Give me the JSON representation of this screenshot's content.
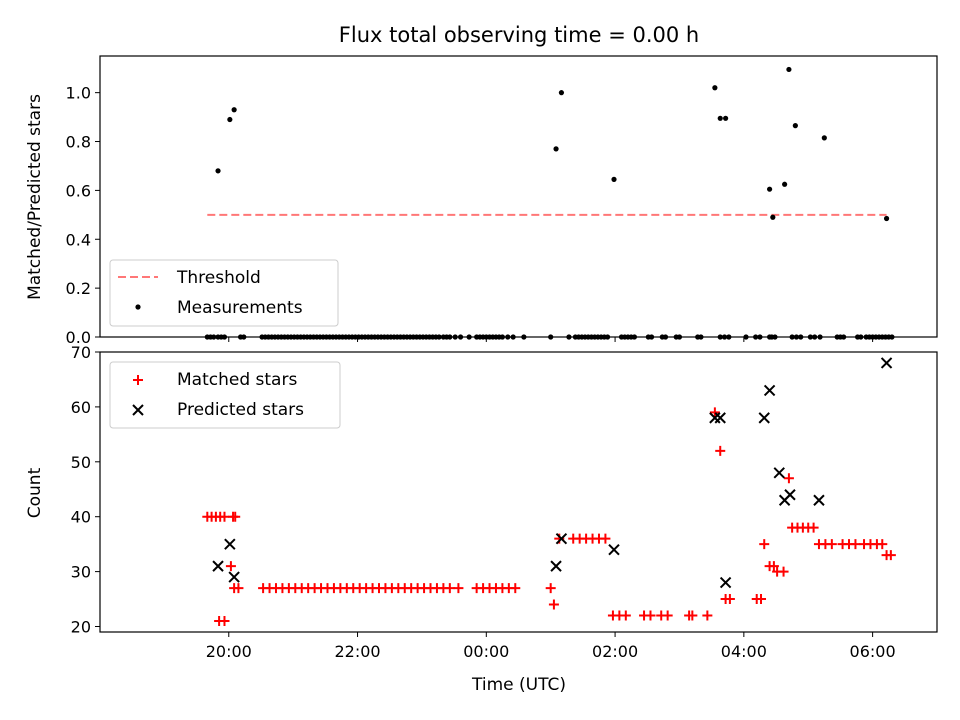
{
  "title": "Flux total observing time = 0.00 h",
  "chart_data": [
    {
      "type": "scatter",
      "ylabel": "Matched/Predicted stars",
      "xlabel": "",
      "ylim": [
        0,
        1.15
      ],
      "yticks": [
        "0.0",
        "0.2",
        "0.4",
        "0.6",
        "0.8",
        "1.0"
      ],
      "xticks": [
        "20:00",
        "22:00",
        "00:00",
        "02:00",
        "04:00",
        "06:00"
      ],
      "legend": "lower-left",
      "grid": false,
      "threshold": {
        "name": "Threshold",
        "value": 0.5,
        "x_start": "19:40",
        "x_end": "06:13",
        "color": "#ff7777"
      },
      "measurements": {
        "name": "Measurements",
        "color": "#000000",
        "nonzero": [
          {
            "x": "19:50",
            "y": 0.68
          },
          {
            "x": "20:01",
            "y": 0.89
          },
          {
            "x": "20:05",
            "y": 0.93
          },
          {
            "x": "01:05",
            "y": 0.77
          },
          {
            "x": "01:10",
            "y": 1.0
          },
          {
            "x": "01:59",
            "y": 0.645
          },
          {
            "x": "03:33",
            "y": 1.02
          },
          {
            "x": "03:38",
            "y": 0.895
          },
          {
            "x": "03:43",
            "y": 0.895
          },
          {
            "x": "04:24",
            "y": 0.605
          },
          {
            "x": "04:27",
            "y": 0.49
          },
          {
            "x": "04:38",
            "y": 0.625
          },
          {
            "x": "04:42",
            "y": 1.095
          },
          {
            "x": "04:48",
            "y": 0.865
          },
          {
            "x": "05:15",
            "y": 0.815
          },
          {
            "x": "06:13",
            "y": 0.485
          }
        ],
        "zero_at": [
          "19:40",
          "19:43",
          "19:46",
          "19:50",
          "19:53",
          "19:56",
          "20:11",
          "20:14",
          "20:31",
          "20:34",
          "20:37",
          "20:40",
          "20:43",
          "20:46",
          "20:49",
          "20:52",
          "20:55",
          "20:58",
          "21:01",
          "21:04",
          "21:07",
          "21:10",
          "21:13",
          "21:16",
          "21:19",
          "21:22",
          "21:25",
          "21:28",
          "21:31",
          "21:34",
          "21:37",
          "21:40",
          "21:43",
          "21:46",
          "21:49",
          "21:52",
          "21:55",
          "21:58",
          "22:01",
          "22:04",
          "22:07",
          "22:10",
          "22:13",
          "22:16",
          "22:19",
          "22:22",
          "22:25",
          "22:28",
          "22:31",
          "22:34",
          "22:37",
          "22:40",
          "22:43",
          "22:46",
          "22:49",
          "22:52",
          "22:55",
          "22:58",
          "23:01",
          "23:04",
          "23:07",
          "23:10",
          "23:13",
          "23:16",
          "23:20",
          "23:23",
          "23:26",
          "23:31",
          "23:36",
          "23:44",
          "23:51",
          "23:54",
          "23:57",
          "00:00",
          "00:03",
          "00:06",
          "00:09",
          "00:12",
          "00:15",
          "00:20",
          "00:25",
          "00:35",
          "01:00",
          "01:17",
          "01:23",
          "01:26",
          "01:29",
          "01:32",
          "01:35",
          "01:38",
          "01:41",
          "01:44",
          "01:47",
          "01:50",
          "01:53",
          "02:06",
          "02:09",
          "02:12",
          "02:15",
          "02:18",
          "02:31",
          "02:34",
          "02:44",
          "02:47",
          "02:57",
          "03:00",
          "03:17",
          "03:20",
          "03:38",
          "03:42",
          "03:46",
          "04:02",
          "04:11",
          "04:15",
          "04:24",
          "04:26",
          "04:29",
          "04:45",
          "04:49",
          "04:53",
          "05:02",
          "05:06",
          "05:11",
          "05:27",
          "05:30",
          "05:33",
          "05:46",
          "05:49",
          "05:54",
          "05:57",
          "06:00",
          "06:03",
          "06:06",
          "06:09",
          "06:12",
          "06:15",
          "06:18"
        ]
      }
    },
    {
      "type": "scatter",
      "ylabel": "Count",
      "xlabel": "Time (UTC)",
      "ylim": [
        19,
        70
      ],
      "yticks": [
        "20",
        "30",
        "40",
        "50",
        "60",
        "70"
      ],
      "xticks": [
        "20:00",
        "22:00",
        "00:00",
        "02:00",
        "04:00",
        "06:00"
      ],
      "legend": "upper-left",
      "grid": false,
      "series": [
        {
          "name": "Matched stars",
          "marker": "plus",
          "color": "#ff0000",
          "points": [
            {
              "x": "19:40",
              "y": 40
            },
            {
              "x": "19:44",
              "y": 40
            },
            {
              "x": "19:48",
              "y": 40
            },
            {
              "x": "19:52",
              "y": 40
            },
            {
              "x": "19:56",
              "y": 40
            },
            {
              "x": "20:04",
              "y": 40
            },
            {
              "x": "20:06",
              "y": 40
            },
            {
              "x": "19:51",
              "y": 21
            },
            {
              "x": "19:56",
              "y": 21
            },
            {
              "x": "20:02",
              "y": 31
            },
            {
              "x": "20:05",
              "y": 27
            },
            {
              "x": "20:09",
              "y": 27
            },
            {
              "x": "20:32",
              "y": 27
            },
            {
              "x": "20:38",
              "y": 27
            },
            {
              "x": "20:44",
              "y": 27
            },
            {
              "x": "20:50",
              "y": 27
            },
            {
              "x": "20:56",
              "y": 27
            },
            {
              "x": "21:02",
              "y": 27
            },
            {
              "x": "21:08",
              "y": 27
            },
            {
              "x": "21:14",
              "y": 27
            },
            {
              "x": "21:20",
              "y": 27
            },
            {
              "x": "21:26",
              "y": 27
            },
            {
              "x": "21:32",
              "y": 27
            },
            {
              "x": "21:38",
              "y": 27
            },
            {
              "x": "21:44",
              "y": 27
            },
            {
              "x": "21:50",
              "y": 27
            },
            {
              "x": "21:56",
              "y": 27
            },
            {
              "x": "22:02",
              "y": 27
            },
            {
              "x": "22:08",
              "y": 27
            },
            {
              "x": "22:14",
              "y": 27
            },
            {
              "x": "22:20",
              "y": 27
            },
            {
              "x": "22:26",
              "y": 27
            },
            {
              "x": "22:32",
              "y": 27
            },
            {
              "x": "22:38",
              "y": 27
            },
            {
              "x": "22:44",
              "y": 27
            },
            {
              "x": "22:50",
              "y": 27
            },
            {
              "x": "22:56",
              "y": 27
            },
            {
              "x": "23:02",
              "y": 27
            },
            {
              "x": "23:08",
              "y": 27
            },
            {
              "x": "23:14",
              "y": 27
            },
            {
              "x": "23:20",
              "y": 27
            },
            {
              "x": "23:26",
              "y": 27
            },
            {
              "x": "23:34",
              "y": 27
            },
            {
              "x": "23:51",
              "y": 27
            },
            {
              "x": "23:57",
              "y": 27
            },
            {
              "x": "00:03",
              "y": 27
            },
            {
              "x": "00:09",
              "y": 27
            },
            {
              "x": "00:15",
              "y": 27
            },
            {
              "x": "00:21",
              "y": 27
            },
            {
              "x": "00:27",
              "y": 27
            },
            {
              "x": "01:00",
              "y": 27
            },
            {
              "x": "01:03",
              "y": 24
            },
            {
              "x": "01:08",
              "y": 36
            },
            {
              "x": "01:21",
              "y": 36
            },
            {
              "x": "01:27",
              "y": 36
            },
            {
              "x": "01:33",
              "y": 36
            },
            {
              "x": "01:39",
              "y": 36
            },
            {
              "x": "01:45",
              "y": 36
            },
            {
              "x": "01:51",
              "y": 36
            },
            {
              "x": "01:58",
              "y": 22
            },
            {
              "x": "02:04",
              "y": 22
            },
            {
              "x": "02:10",
              "y": 22
            },
            {
              "x": "02:27",
              "y": 22
            },
            {
              "x": "02:33",
              "y": 22
            },
            {
              "x": "02:43",
              "y": 22
            },
            {
              "x": "02:49",
              "y": 22
            },
            {
              "x": "03:09",
              "y": 22
            },
            {
              "x": "03:12",
              "y": 22
            },
            {
              "x": "03:26",
              "y": 22
            },
            {
              "x": "03:33",
              "y": 59
            },
            {
              "x": "03:38",
              "y": 52
            },
            {
              "x": "03:43",
              "y": 25
            },
            {
              "x": "03:47",
              "y": 25
            },
            {
              "x": "04:12",
              "y": 25
            },
            {
              "x": "04:16",
              "y": 25
            },
            {
              "x": "04:19",
              "y": 35
            },
            {
              "x": "04:24",
              "y": 31
            },
            {
              "x": "04:28",
              "y": 31
            },
            {
              "x": "04:31",
              "y": 30
            },
            {
              "x": "04:37",
              "y": 30
            },
            {
              "x": "04:42",
              "y": 47
            },
            {
              "x": "04:45",
              "y": 38
            },
            {
              "x": "04:50",
              "y": 38
            },
            {
              "x": "04:55",
              "y": 38
            },
            {
              "x": "05:00",
              "y": 38
            },
            {
              "x": "05:05",
              "y": 38
            },
            {
              "x": "05:10",
              "y": 35
            },
            {
              "x": "05:16",
              "y": 35
            },
            {
              "x": "05:22",
              "y": 35
            },
            {
              "x": "05:32",
              "y": 35
            },
            {
              "x": "05:38",
              "y": 35
            },
            {
              "x": "05:44",
              "y": 35
            },
            {
              "x": "05:52",
              "y": 35
            },
            {
              "x": "05:58",
              "y": 35
            },
            {
              "x": "06:04",
              "y": 35
            },
            {
              "x": "06:09",
              "y": 35
            },
            {
              "x": "06:13",
              "y": 33
            },
            {
              "x": "06:17",
              "y": 33
            }
          ]
        },
        {
          "name": "Predicted stars",
          "marker": "x",
          "color": "#000000",
          "points": [
            {
              "x": "19:50",
              "y": 31
            },
            {
              "x": "20:01",
              "y": 35
            },
            {
              "x": "20:05",
              "y": 29
            },
            {
              "x": "01:05",
              "y": 31
            },
            {
              "x": "01:10",
              "y": 36
            },
            {
              "x": "01:59",
              "y": 34
            },
            {
              "x": "03:33",
              "y": 58
            },
            {
              "x": "03:38",
              "y": 58
            },
            {
              "x": "03:43",
              "y": 28
            },
            {
              "x": "04:19",
              "y": 58
            },
            {
              "x": "04:24",
              "y": 63
            },
            {
              "x": "04:33",
              "y": 48
            },
            {
              "x": "04:38",
              "y": 43
            },
            {
              "x": "04:43",
              "y": 44
            },
            {
              "x": "05:10",
              "y": 43
            },
            {
              "x": "06:13",
              "y": 68
            }
          ]
        }
      ]
    }
  ]
}
